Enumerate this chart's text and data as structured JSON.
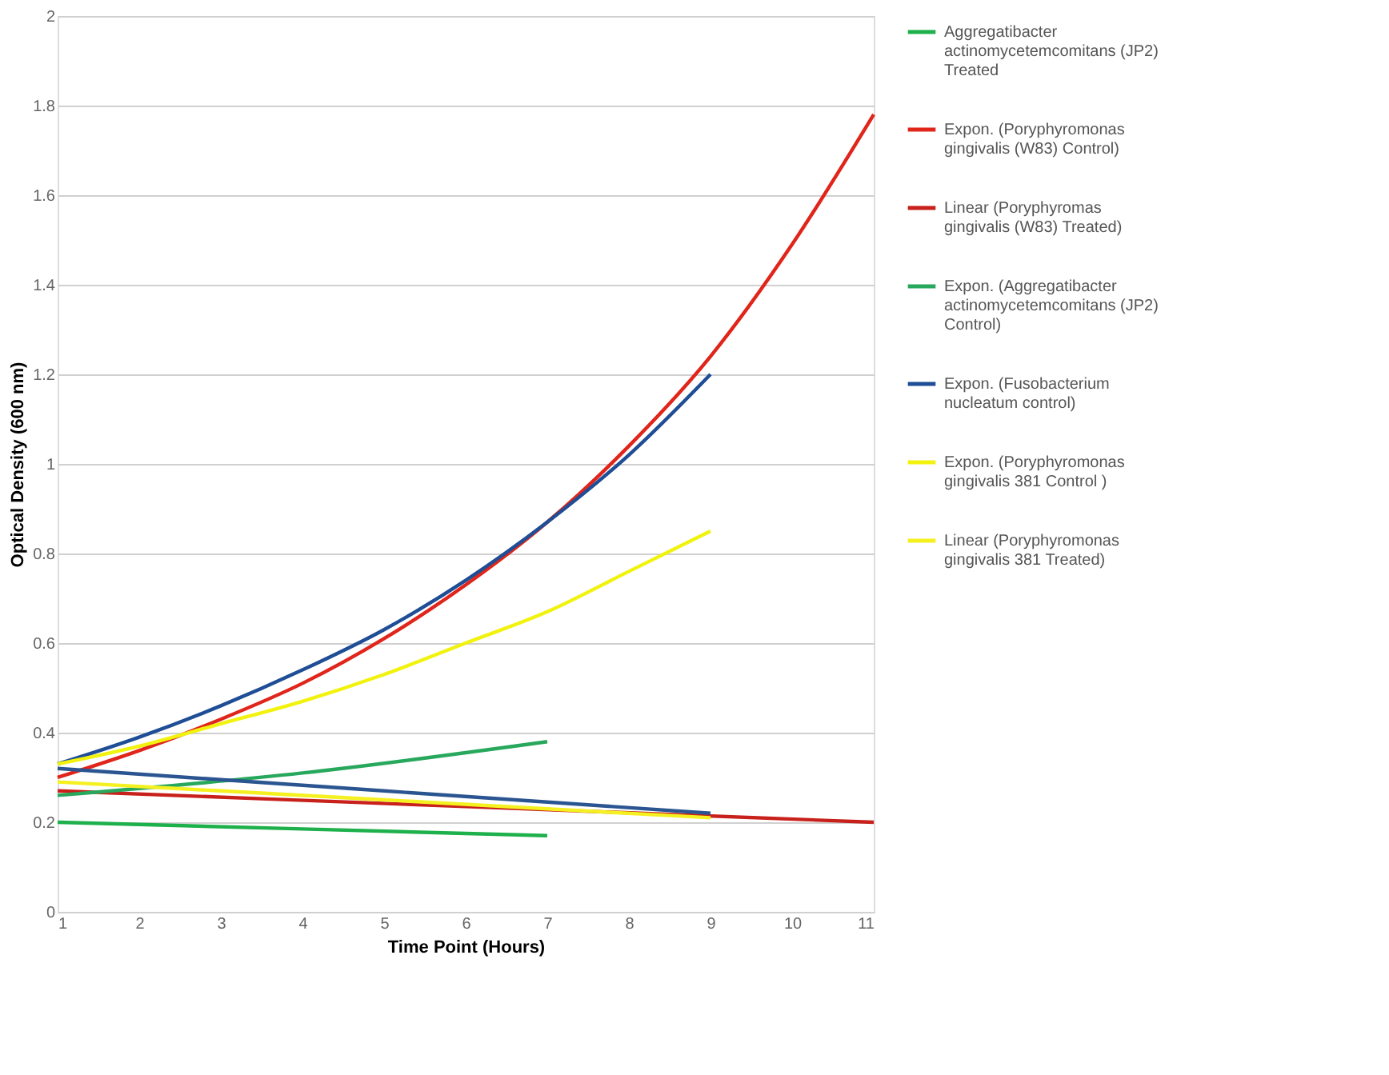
{
  "chart_data": {
    "type": "line",
    "xlabel": "Time Point (Hours)",
    "ylabel": "Optical Density (600 nm)",
    "xlim": [
      1,
      11
    ],
    "ylim": [
      0,
      2
    ],
    "xticks": [
      1,
      2,
      3,
      4,
      5,
      6,
      7,
      8,
      9,
      10,
      11
    ],
    "yticks": [
      0,
      0.2,
      0.4,
      0.6,
      0.8,
      1,
      1.2,
      1.4,
      1.6,
      1.8,
      2
    ],
    "grid": "y",
    "legend": "right",
    "line_style": "solid",
    "series": [
      {
        "name": "Aggregatibacter actinomycetemcomitans (JP2) Treated",
        "color": "#1db04b",
        "x": [
          1,
          4,
          7
        ],
        "values": [
          0.2,
          0.185,
          0.17
        ]
      },
      {
        "name": "Expon. (Poryphyromonas gingivalis (W83) Control)",
        "color": "#e0251b",
        "x": [
          1,
          2,
          3,
          4,
          5,
          6,
          7,
          8,
          9,
          10,
          11
        ],
        "values": [
          0.3,
          0.36,
          0.43,
          0.51,
          0.61,
          0.73,
          0.87,
          1.04,
          1.24,
          1.49,
          1.78
        ]
      },
      {
        "name": "Linear (Poryphyromas gingivalis (W83) Treated)",
        "color": "#c8201a",
        "x": [
          1,
          6,
          11
        ],
        "values": [
          0.27,
          0.235,
          0.2
        ]
      },
      {
        "name": "Expon. (Aggregatibacter actinomycetemcomitans (JP2) Control)",
        "color": "#28a85c",
        "x": [
          1,
          4,
          7
        ],
        "values": [
          0.26,
          0.31,
          0.38
        ]
      },
      {
        "name": "Expon. (Fusobacterium nucleatum control)",
        "color": "#1f4e96",
        "x": [
          1,
          2,
          3,
          4,
          5,
          6,
          7,
          8,
          9
        ],
        "values": [
          0.33,
          0.39,
          0.46,
          0.54,
          0.63,
          0.74,
          0.87,
          1.02,
          1.2
        ]
      },
      {
        "name": "Expon. (Poryphyromonas gingivalis 381 Control )",
        "color": "#f2f20f",
        "x": [
          1,
          2,
          3,
          4,
          5,
          6,
          7,
          8,
          9
        ],
        "values": [
          0.33,
          0.37,
          0.42,
          0.47,
          0.53,
          0.6,
          0.67,
          0.76,
          0.85
        ]
      },
      {
        "name": "Linear (Poryphyromonas gingivalis 381 Treated)",
        "color": "#f5f020",
        "x": [
          1,
          5,
          9
        ],
        "values": [
          0.29,
          0.25,
          0.21
        ]
      },
      {
        "color": "#2a5590",
        "x": [
          1,
          5,
          9
        ],
        "values": [
          0.32,
          0.27,
          0.22
        ]
      }
    ]
  }
}
